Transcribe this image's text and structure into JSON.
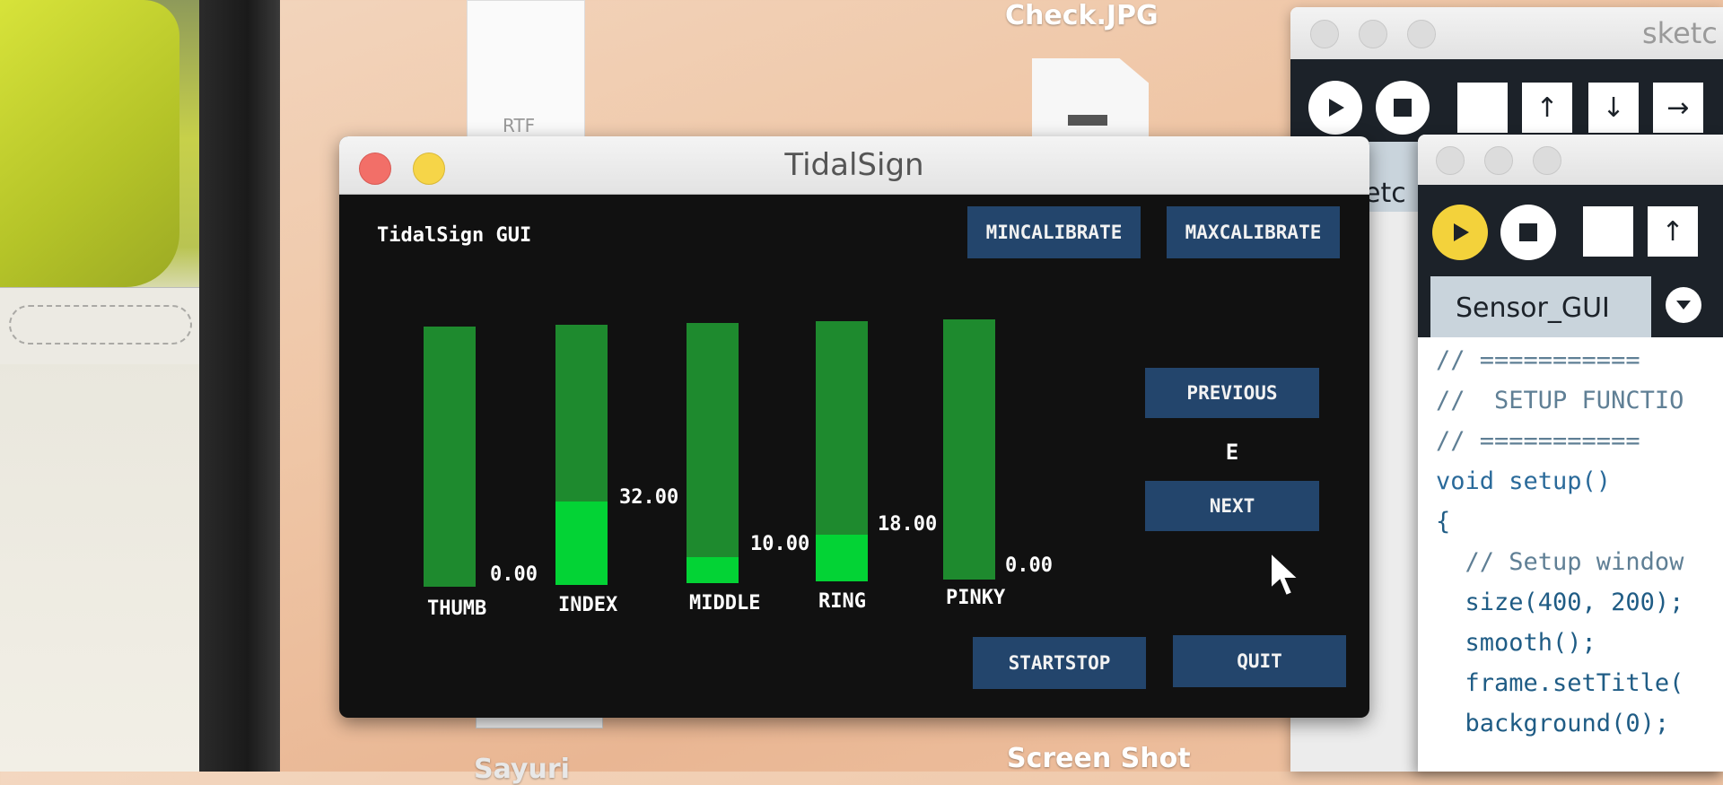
{
  "desktop": {
    "check_label": "Check.JPG",
    "screenshot_label": "Screen Shot",
    "rtf_label": "RTF",
    "sayuri_label": "Sayuri"
  },
  "window": {
    "title": "TidalSign"
  },
  "gui": {
    "title": "TidalSign GUI",
    "buttons": {
      "min_calibrate": "MINCALIBRATE",
      "max_calibrate": "MAXCALIBRATE",
      "previous": "PREVIOUS",
      "next": "NEXT",
      "start_stop": "STARTSTOP",
      "quit": "QUIT"
    },
    "current_letter": "E",
    "fingers": [
      {
        "label": "THUMB",
        "value": "0.00",
        "level": 0.0
      },
      {
        "label": "INDEX",
        "value": "32.00",
        "level": 0.32
      },
      {
        "label": "MIDDLE",
        "value": "10.00",
        "level": 0.1
      },
      {
        "label": "RING",
        "value": "18.00",
        "level": 0.18
      },
      {
        "label": "PINKY",
        "value": "0.00",
        "level": 0.0
      }
    ]
  },
  "ide_back": {
    "title": "sketc",
    "tab_partial": "etc"
  },
  "ide_front": {
    "tab_label": "Sensor_GUI",
    "code_lines": [
      "// ===========",
      "//  SETUP FUNCTIO",
      "// ===========",
      "void setup()",
      "{",
      "  // Setup window",
      "  size(400, 200);",
      "  smooth();",
      "  frame.setTitle(",
      "  background(0);"
    ]
  },
  "colors": {
    "bar_dark": "#1e8a2e",
    "bar_fill": "#03d335",
    "button_bg": "#23456c",
    "window_bg": "#111111",
    "ide_header": "#1c2229",
    "ide_accent": "#f3d23b"
  },
  "icons": [
    "close-icon",
    "minimize-icon",
    "run-icon",
    "stop-icon",
    "new-icon",
    "open-icon",
    "save-icon",
    "export-icon",
    "dropdown-icon",
    "cursor-icon"
  ]
}
